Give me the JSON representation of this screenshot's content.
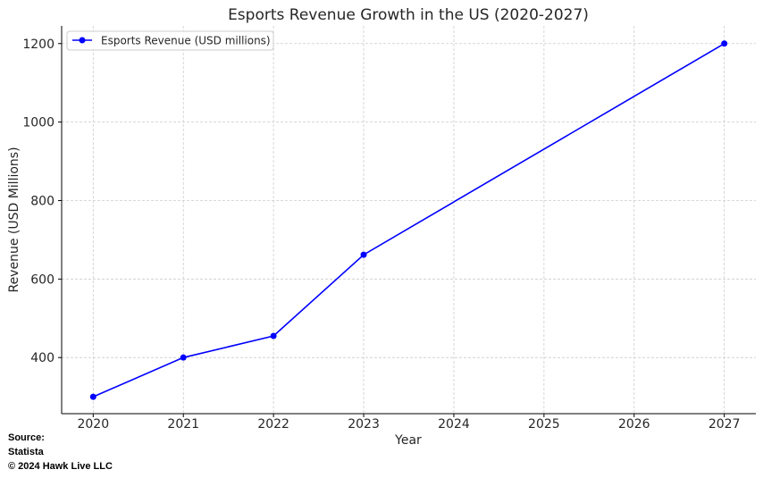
{
  "chart_data": {
    "type": "line",
    "title": "Esports Revenue Growth in the US (2020-2027)",
    "xlabel": "Year",
    "ylabel": "Revenue (USD Millions)",
    "x": [
      2020,
      2021,
      2022,
      2023,
      2027
    ],
    "series": [
      {
        "name": "Esports Revenue (USD millions)",
        "color": "#0000ff",
        "values": [
          300,
          400,
          455,
          662,
          1200
        ]
      }
    ],
    "xticks": [
      "2020",
      "2021",
      "2022",
      "2023",
      "2024",
      "2025",
      "2026",
      "2027"
    ],
    "yticks": [
      "400",
      "600",
      "800",
      "1000",
      "1200"
    ],
    "xlim": [
      2019.65,
      2027.35
    ],
    "ylim": [
      257,
      1245
    ],
    "grid": true,
    "legend_position": "top-left"
  },
  "source": {
    "line1": "Source:",
    "line2": "Statista",
    "line3": "© 2024 Hawk Live LLC"
  }
}
